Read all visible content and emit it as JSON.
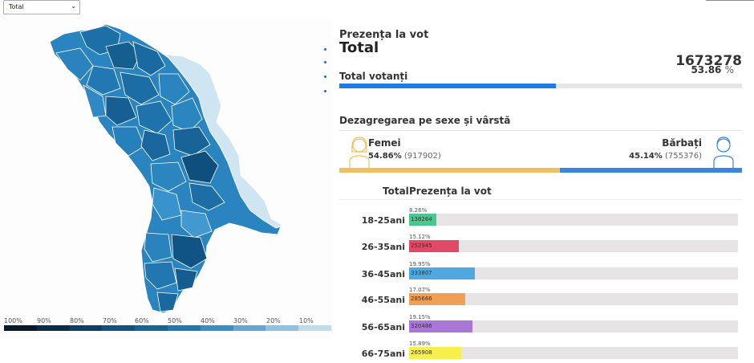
{
  "filter": {
    "selected": "Total"
  },
  "map": {
    "scale_labels": [
      "100%",
      "90%",
      "80%",
      "70%",
      "60%",
      "50%",
      "40%",
      "30%",
      "20%",
      "10%"
    ],
    "scale_colors": [
      "#08182b",
      "#0b2c4a",
      "#0f3f66",
      "#11527f",
      "#176596",
      "#1f78ae",
      "#3a8ec3",
      "#62a8d3",
      "#8fc2e2",
      "#bddcee"
    ]
  },
  "turnout": {
    "heading": "Prezența la vot",
    "subject": "Total",
    "total_number": "1673278",
    "total_percent": "53.86",
    "percent_unit": "%",
    "total_voters_label": "Total votanți",
    "bar_fraction": 0.5386
  },
  "gender": {
    "title": "Dezagregarea pe sexe și vârstă",
    "female_label": "Femei",
    "female_percent": "54.86%",
    "female_count": "(917902)",
    "male_label": "Bărbați",
    "male_percent": "45.14%",
    "male_count": "(755376)",
    "female_fraction": 0.5486,
    "colors": {
      "female": "#f0c060",
      "male": "#3a86de"
    }
  },
  "age": {
    "header_total": "Total",
    "header_turnout": "Prezența la vot",
    "rows": [
      {
        "label": "18-25ani",
        "percent": "8.26%",
        "count": "138264",
        "fraction": 0.0826,
        "color": "#49c78f"
      },
      {
        "label": "26-35ani",
        "percent": "15.12%",
        "count": "252945",
        "fraction": 0.1512,
        "color": "#e04a66"
      },
      {
        "label": "36-45ani",
        "percent": "19.95%",
        "count": "333807",
        "fraction": 0.1995,
        "color": "#4fa9df"
      },
      {
        "label": "46-55ani",
        "percent": "17.07%",
        "count": "285666",
        "fraction": 0.1707,
        "color": "#f0a055"
      },
      {
        "label": "56-65ani",
        "percent": "19.15%",
        "count": "320486",
        "fraction": 0.1915,
        "color": "#a978d6"
      },
      {
        "label": "66-75ani",
        "percent": "15.89%",
        "count": "265908",
        "fraction": 0.1589,
        "color": "#f6ef4c"
      }
    ]
  }
}
